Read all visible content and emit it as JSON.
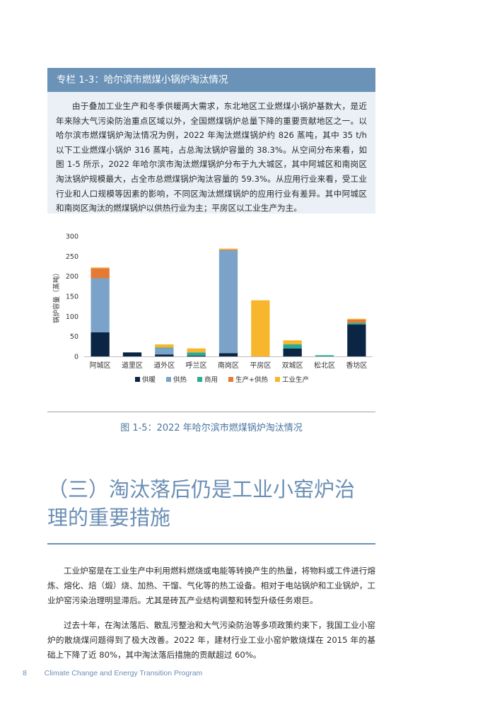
{
  "box": {
    "title": "专栏 1-3：哈尔滨市燃煤小锅炉淘汰情况",
    "paragraph": "由于叠加工业生产和冬季供暖两大需求，东北地区工业燃煤小锅炉基数大，是近年来除大气污染防治重点区域以外，全国燃煤锅炉总量下降的重要贡献地区之一。以哈尔滨市燃煤锅炉淘汰情况为例，2022 年淘汰燃煤锅炉约 826 蒸吨，其中 35 t/h 以下工业燃煤小锅炉 316 蒸吨，占总淘汰锅炉容量的 38.3%。从空间分布来看，如图 1-5 所示，2022 年哈尔滨市淘汰燃煤锅炉分布于九大城区，其中阿城区和南岗区淘汰锅炉规模最大，占全市总燃煤锅炉淘汰容量的 59.3%。从应用行业来看，受工业行业和人口规模等因素的影响，不同区淘汰燃煤锅炉的应用行业有差异。其中阿城区和南岗区淘汰的燃煤锅炉以供热行业为主；平房区以工业生产为主。"
  },
  "chart_data": {
    "type": "bar",
    "stacked": true,
    "title": "",
    "xlabel": "",
    "ylabel": "锅炉容量（蒸吨）",
    "ylim": [
      0,
      300
    ],
    "yticks": [
      0,
      50,
      100,
      150,
      200,
      250,
      300
    ],
    "grid": false,
    "legend_position": "bottom",
    "categories": [
      "阿城区",
      "道里区",
      "道外区",
      "呼兰区",
      "南岗区",
      "平房区",
      "双城区",
      "松北区",
      "香坊区"
    ],
    "series": [
      {
        "name": "供暖",
        "color": "#0b2545",
        "values": [
          60,
          10,
          5,
          2,
          8,
          0,
          20,
          0,
          80
        ]
      },
      {
        "name": "供热",
        "color": "#7ba3c9",
        "values": [
          135,
          0,
          15,
          0,
          257,
          0,
          0,
          0,
          0
        ]
      },
      {
        "name": "商用",
        "color": "#2aaa98",
        "values": [
          0,
          0,
          2,
          8,
          0,
          0,
          10,
          3,
          4
        ]
      },
      {
        "name": "生产+供热",
        "color": "#e57a35",
        "values": [
          25,
          0,
          0,
          0,
          2,
          0,
          0,
          0,
          8
        ]
      },
      {
        "name": "工业生产",
        "color": "#f7b62e",
        "values": [
          2,
          0,
          8,
          10,
          2,
          140,
          10,
          0,
          2
        ]
      }
    ]
  },
  "figure": {
    "caption": "图 1-5：2022 年哈尔滨市燃煤锅炉淘汰情况"
  },
  "section": {
    "title_line1": "（三）淘汰落后仍是工业小窑炉治",
    "title_line2": "理的重要措施"
  },
  "body": {
    "p1": "工业炉窑是在工业生产中利用燃料燃烧或电能等转换产生的热量，将物料或工件进行熔炼、熔化、焙（煅）烧、加热、干馏、气化等的热工设备。相对于电站锅炉和工业锅炉，工业炉窑污染治理明显滞后。尤其是砖瓦产业结构调整和转型升级任务艰巨。",
    "p2": "过去十年，在淘汰落后、散乱污整治和大气污染防治等多项政策约束下，我国工业小窑炉的散烧煤问题得到了极大改善。2022 年，建材行业工业小窑炉散烧煤在 2015 年的基础上下降了近 80%，其中淘汰落后措施的贡献超过 60%。"
  },
  "footer": {
    "page_number": "8",
    "program": "Climate Change and Energy Transition Program"
  }
}
